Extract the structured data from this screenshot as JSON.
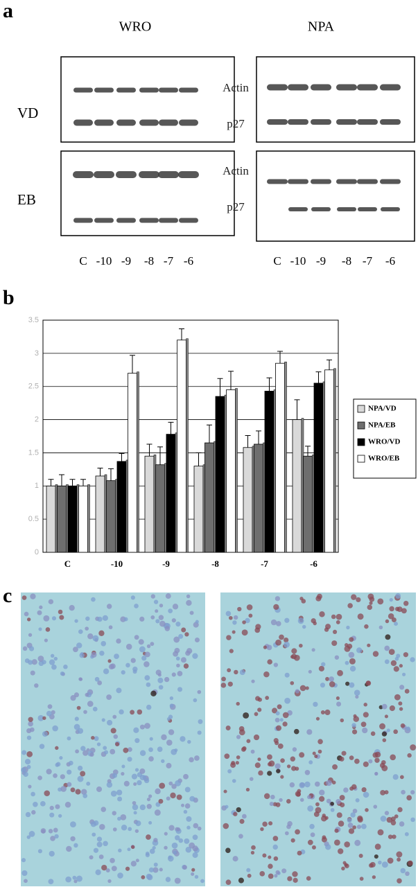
{
  "figure": {
    "labels": [
      "a",
      "b",
      "c"
    ]
  },
  "blots": {
    "columns": [
      "WRO",
      "NPA"
    ],
    "rows": [
      "VD",
      "EB"
    ],
    "bands": [
      "Actin",
      "p27",
      "Actin",
      "p27"
    ],
    "lanes_wro": [
      "C",
      "-10",
      "-9",
      "-8",
      "-7",
      "-6"
    ],
    "lanes_npa": [
      "C",
      "-10",
      "-9",
      "-8",
      "-7",
      "-6"
    ]
  },
  "chart_data": {
    "type": "bar",
    "categories": [
      "C",
      "-10",
      "-9",
      "-8",
      "-7",
      "-6"
    ],
    "series": [
      {
        "name": "NPA/VD",
        "color": "#d9d9d9",
        "values": [
          1.0,
          1.15,
          1.45,
          1.3,
          1.58,
          2.0
        ],
        "errors": [
          0.1,
          0.12,
          0.18,
          0.2,
          0.18,
          0.3
        ]
      },
      {
        "name": "NPA/EB",
        "color": "#6e6e6e",
        "values": [
          1.0,
          1.08,
          1.32,
          1.65,
          1.63,
          1.45
        ],
        "errors": [
          0.17,
          0.18,
          0.27,
          0.27,
          0.2,
          0.15
        ]
      },
      {
        "name": "WRO/VD",
        "color": "#000000",
        "values": [
          1.0,
          1.37,
          1.78,
          2.35,
          2.43,
          2.55
        ],
        "errors": [
          0.1,
          0.12,
          0.18,
          0.27,
          0.2,
          0.17
        ]
      },
      {
        "name": "WRO/EB",
        "color": "#ffffff",
        "values": [
          1.0,
          2.7,
          3.2,
          2.45,
          2.85,
          2.75
        ],
        "errors": [
          0.1,
          0.27,
          0.17,
          0.28,
          0.18,
          0.15
        ]
      }
    ],
    "ylim": [
      0,
      3.5
    ],
    "yticks": [
      0,
      0.5,
      1,
      1.5,
      2,
      2.5,
      3,
      3.5
    ],
    "grid": true,
    "legend": "right"
  }
}
